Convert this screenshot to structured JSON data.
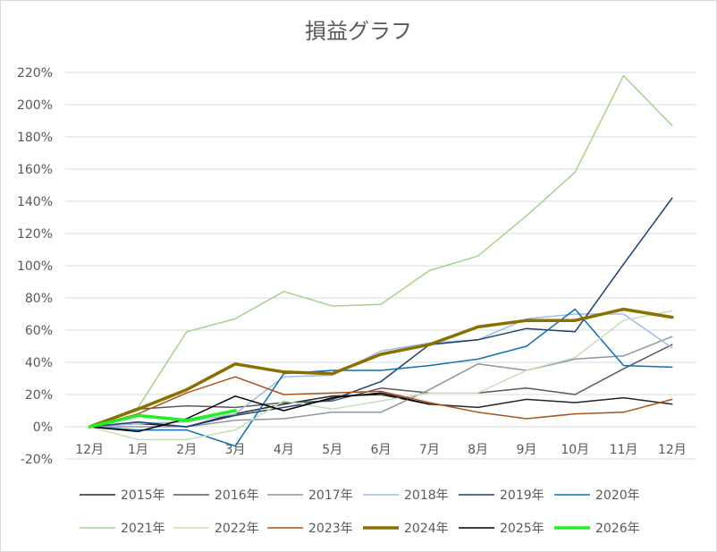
{
  "chart_data": {
    "type": "line",
    "title": "損益グラフ",
    "xlabel": "",
    "ylabel": "",
    "categories": [
      "12月",
      "1月",
      "2月",
      "3月",
      "4月",
      "5月",
      "6月",
      "7月",
      "8月",
      "9月",
      "10月",
      "11月",
      "12月"
    ],
    "y_tick_labels": [
      "-20%",
      "0%",
      "20%",
      "40%",
      "60%",
      "80%",
      "100%",
      "120%",
      "140%",
      "160%",
      "180%",
      "200%",
      "220%"
    ],
    "ylim": [
      -20,
      220
    ],
    "unit": "%",
    "grid": "horizontal",
    "legend_position": "bottom",
    "series": [
      {
        "name": "2015年",
        "color": "#262626",
        "width": 1.5,
        "values": [
          0,
          2,
          0,
          8,
          14,
          19,
          20,
          14,
          12,
          17,
          15,
          18,
          14
        ]
      },
      {
        "name": "2016年",
        "color": "#595959",
        "width": 1.5,
        "values": [
          0,
          11,
          13,
          12,
          15,
          16,
          24,
          21,
          21,
          24,
          20,
          36,
          51
        ]
      },
      {
        "name": "2017年",
        "color": "#8c96a6",
        "width": 1.5,
        "values": [
          0,
          0,
          0,
          4,
          5,
          9,
          9,
          23,
          39,
          35,
          42,
          44,
          56
        ]
      },
      {
        "name": "2018年",
        "color": "#9cbde0",
        "width": 1.5,
        "values": [
          0,
          2,
          3,
          8,
          31,
          32,
          47,
          52,
          54,
          67,
          70,
          70,
          49
        ]
      },
      {
        "name": "2019年",
        "color": "#1f3f6e",
        "width": 1.5,
        "values": [
          0,
          3,
          0,
          7,
          12,
          17,
          28,
          51,
          54,
          61,
          59,
          101,
          142
        ]
      },
      {
        "name": "2020年",
        "color": "#0f6fb1",
        "width": 1.5,
        "values": [
          0,
          -2,
          -2,
          -12,
          33,
          35,
          35,
          38,
          42,
          50,
          73,
          38,
          37
        ]
      },
      {
        "name": "2021年",
        "color": "#a8d08d",
        "width": 1.5,
        "values": [
          0,
          12,
          59,
          67,
          84,
          75,
          76,
          97,
          106,
          131,
          158,
          218,
          187
        ]
      },
      {
        "name": "2022年",
        "color": "#c5e0b4",
        "width": 1.5,
        "values": [
          0,
          -8,
          -8,
          -2,
          16,
          11,
          16,
          21,
          21,
          35,
          43,
          66,
          72
        ]
      },
      {
        "name": "2023年",
        "color": "#a9531c",
        "width": 1.5,
        "values": [
          0,
          8,
          21,
          31,
          20,
          21,
          22,
          15,
          9,
          5,
          8,
          9,
          17
        ]
      },
      {
        "name": "2024年",
        "color": "#8b6f00",
        "width": 3.5,
        "values": [
          0,
          11,
          23,
          39,
          34,
          33,
          45,
          51,
          62,
          66,
          66,
          73,
          68
        ]
      },
      {
        "name": "2025年",
        "color": "#000000",
        "width": 1.5,
        "values": [
          0,
          -3,
          5,
          19,
          10,
          18,
          21,
          14,
          null,
          null,
          null,
          null,
          null
        ]
      },
      {
        "name": "2026年",
        "color": "#22ee22",
        "width": 3.5,
        "values": [
          0,
          7,
          4,
          10,
          null,
          null,
          null,
          null,
          null,
          null,
          null,
          null,
          null
        ]
      }
    ]
  }
}
